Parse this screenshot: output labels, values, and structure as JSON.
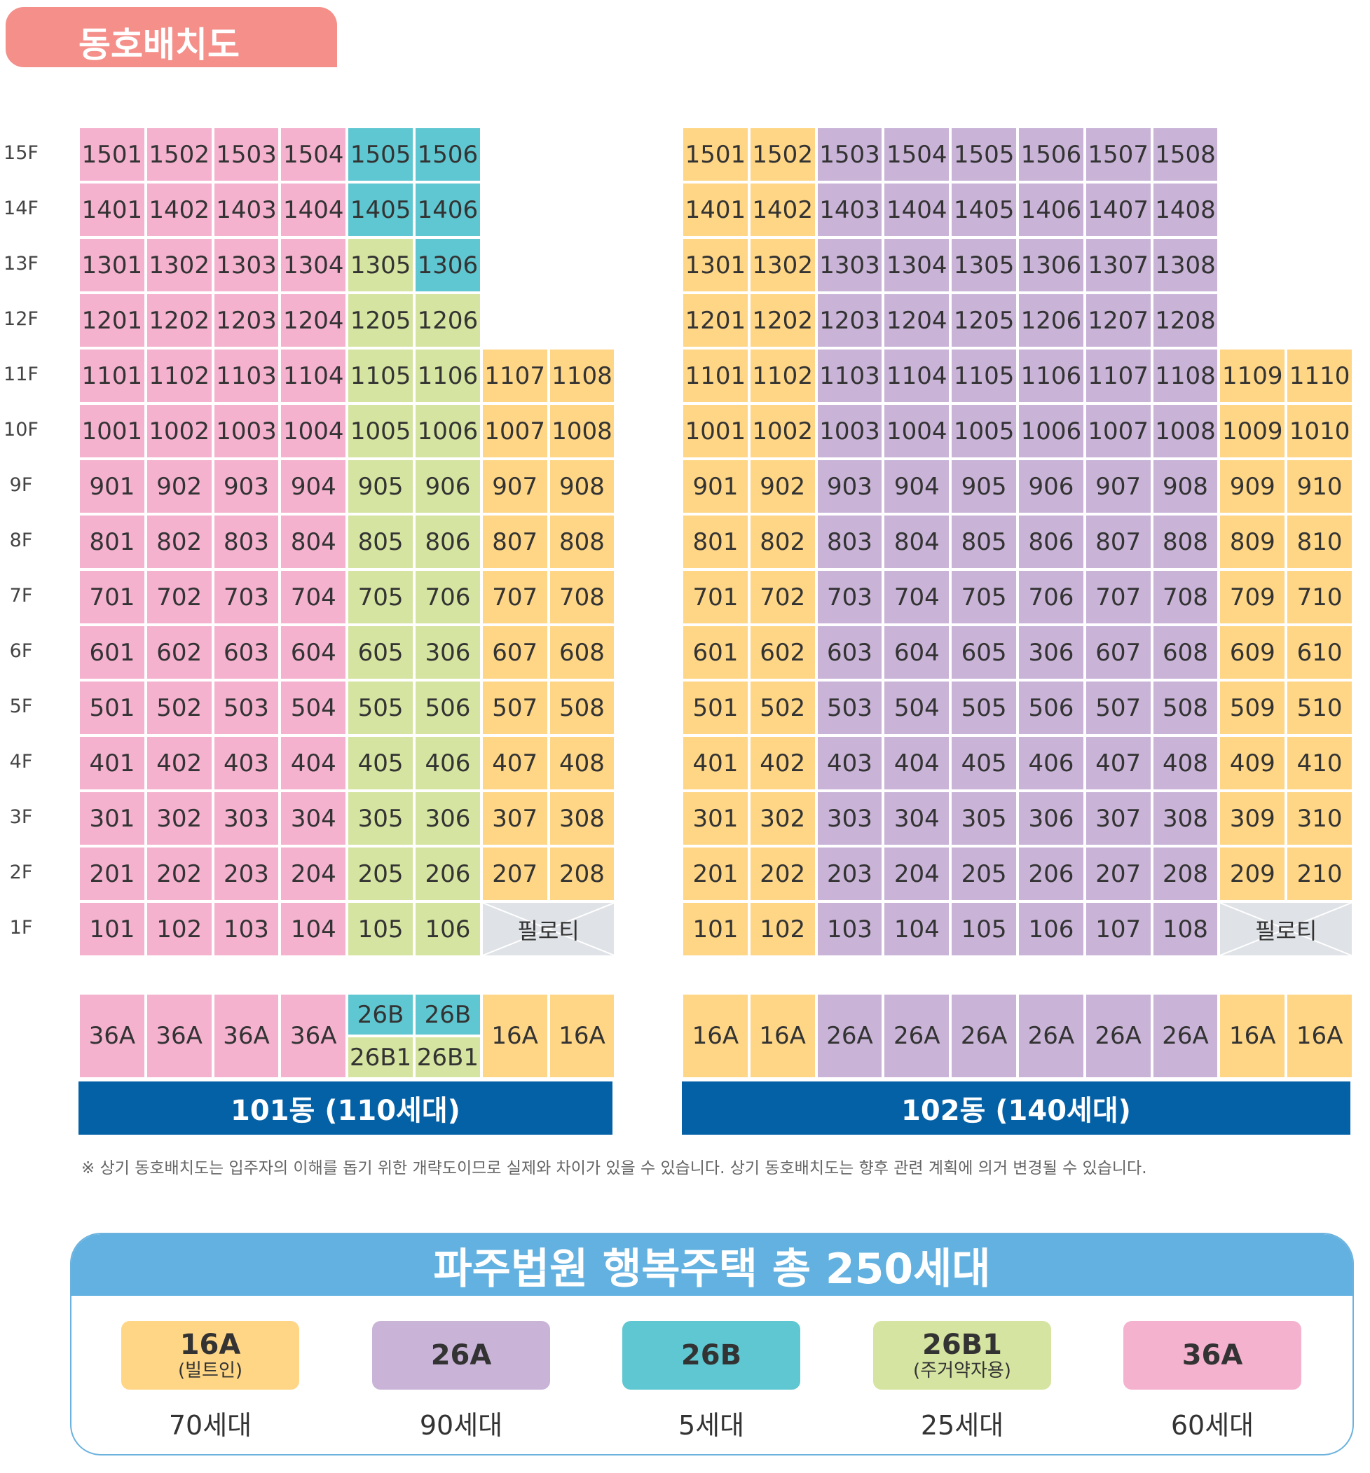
{
  "title": "동호배치도",
  "floors": [
    "15F",
    "14F",
    "13F",
    "12F",
    "11F",
    "10F",
    "9F",
    "8F",
    "7F",
    "6F",
    "5F",
    "4F",
    "3F",
    "2F",
    "1F"
  ],
  "pilotis_label": "필로티",
  "building_101": {
    "label": "101동 (110세대)",
    "unit_types": [
      "36A",
      "36A",
      "36A",
      "36A",
      "26B",
      "26B",
      "16A",
      "16A"
    ],
    "unit_types_lower": [
      "",
      "",
      "",
      "",
      "26B1",
      "26B1",
      "",
      ""
    ],
    "rows": [
      [
        "1501",
        "1502",
        "1503",
        "1504",
        "1505",
        "1506"
      ],
      [
        "1401",
        "1402",
        "1403",
        "1404",
        "1405",
        "1406"
      ],
      [
        "1301",
        "1302",
        "1303",
        "1304",
        "1305",
        "1306"
      ],
      [
        "1201",
        "1202",
        "1203",
        "1204",
        "1205",
        "1206"
      ],
      [
        "1101",
        "1102",
        "1103",
        "1104",
        "1105",
        "1106",
        "1107",
        "1108"
      ],
      [
        "1001",
        "1002",
        "1003",
        "1004",
        "1005",
        "1006",
        "1007",
        "1008"
      ],
      [
        "901",
        "902",
        "903",
        "904",
        "905",
        "906",
        "907",
        "908"
      ],
      [
        "801",
        "802",
        "803",
        "804",
        "805",
        "806",
        "807",
        "808"
      ],
      [
        "701",
        "702",
        "703",
        "704",
        "705",
        "706",
        "707",
        "708"
      ],
      [
        "601",
        "602",
        "603",
        "604",
        "605",
        "306",
        "607",
        "608"
      ],
      [
        "501",
        "502",
        "503",
        "504",
        "505",
        "506",
        "507",
        "508"
      ],
      [
        "401",
        "402",
        "403",
        "404",
        "405",
        "406",
        "407",
        "408"
      ],
      [
        "301",
        "302",
        "303",
        "304",
        "305",
        "306",
        "307",
        "308"
      ],
      [
        "201",
        "202",
        "203",
        "204",
        "205",
        "206",
        "207",
        "208"
      ],
      [
        "101",
        "102",
        "103",
        "104",
        "105",
        "106"
      ]
    ]
  },
  "building_102": {
    "label": "102동 (140세대)",
    "unit_types": [
      "16A",
      "16A",
      "26A",
      "26A",
      "26A",
      "26A",
      "26A",
      "26A",
      "16A",
      "16A"
    ],
    "rows": [
      [
        "1501",
        "1502",
        "1503",
        "1504",
        "1505",
        "1506",
        "1507",
        "1508"
      ],
      [
        "1401",
        "1402",
        "1403",
        "1404",
        "1405",
        "1406",
        "1407",
        "1408"
      ],
      [
        "1301",
        "1302",
        "1303",
        "1304",
        "1305",
        "1306",
        "1307",
        "1308"
      ],
      [
        "1201",
        "1202",
        "1203",
        "1204",
        "1205",
        "1206",
        "1207",
        "1208"
      ],
      [
        "1101",
        "1102",
        "1103",
        "1104",
        "1105",
        "1106",
        "1107",
        "1108",
        "1109",
        "1110"
      ],
      [
        "1001",
        "1002",
        "1003",
        "1004",
        "1005",
        "1006",
        "1007",
        "1008",
        "1009",
        "1010"
      ],
      [
        "901",
        "902",
        "903",
        "904",
        "905",
        "906",
        "907",
        "908",
        "909",
        "910"
      ],
      [
        "801",
        "802",
        "803",
        "804",
        "805",
        "806",
        "807",
        "808",
        "809",
        "810"
      ],
      [
        "701",
        "702",
        "703",
        "704",
        "705",
        "706",
        "707",
        "708",
        "709",
        "710"
      ],
      [
        "601",
        "602",
        "603",
        "604",
        "605",
        "306",
        "607",
        "608",
        "609",
        "610"
      ],
      [
        "501",
        "502",
        "503",
        "504",
        "505",
        "506",
        "507",
        "508",
        "509",
        "510"
      ],
      [
        "401",
        "402",
        "403",
        "404",
        "405",
        "406",
        "407",
        "408",
        "409",
        "410"
      ],
      [
        "301",
        "302",
        "303",
        "304",
        "305",
        "306",
        "307",
        "308",
        "309",
        "310"
      ],
      [
        "201",
        "202",
        "203",
        "204",
        "205",
        "206",
        "207",
        "208",
        "209",
        "210"
      ],
      [
        "101",
        "102",
        "103",
        "104",
        "105",
        "106",
        "107",
        "108"
      ]
    ]
  },
  "note": "※ 상기 동호배치도는 입주자의 이해를 돕기 위한 개략도이므로 실제와 차이가 있을 수 있습니다. 상기 동호배치도는 향후 관련 계획에 의거 변경될 수 있습니다.",
  "summary": {
    "heading": "파주법원 행복주택 총 250세대",
    "types": [
      {
        "name": "16A",
        "sub": "(빌트인)",
        "count": "70세대",
        "color": "#fed686"
      },
      {
        "name": "26A",
        "sub": "",
        "count": "90세대",
        "color": "#c9b4d8"
      },
      {
        "name": "26B",
        "sub": "",
        "count": "5세대",
        "color": "#5fc7d1"
      },
      {
        "name": "26B1",
        "sub": "(주거약자용)",
        "count": "25세대",
        "color": "#d5e4a0"
      },
      {
        "name": "36A",
        "sub": "",
        "count": "60세대",
        "color": "#f5b2cf"
      }
    ]
  },
  "colors": {
    "16A": "#fed686",
    "26A": "#c9b4d8",
    "26B": "#5fc7d1",
    "26B1": "#d5e4a0",
    "36A": "#f5b2cf",
    "pilotis": "#dfe2e6",
    "building_bar": "#0561a6",
    "title_tab": "#f48f8a",
    "summary_header": "#62b1e0"
  }
}
